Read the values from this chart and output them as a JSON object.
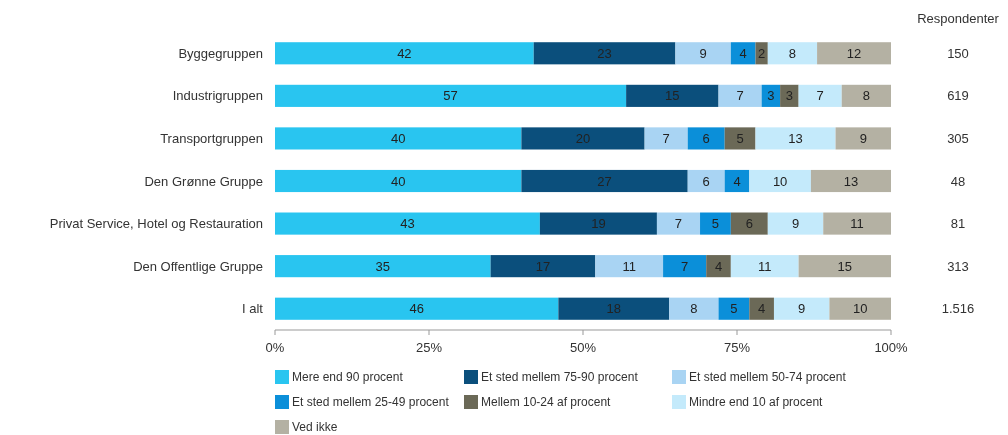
{
  "chart_data": {
    "type": "bar",
    "orientation": "horizontal",
    "stacked": true,
    "data_labels": true,
    "legend": "bottom",
    "categories": [
      "Byggegruppen",
      "Industrigruppen",
      "Transportgruppen",
      "Den Grønne Gruppe",
      "Privat Service, Hotel og Restauration",
      "Den Offentlige Gruppe",
      "I alt"
    ],
    "xlim": [
      0,
      100
    ],
    "xticks": [
      {
        "value": 0,
        "label": "0%"
      },
      {
        "value": 25,
        "label": "25%"
      },
      {
        "value": 50,
        "label": "50%"
      },
      {
        "value": 75,
        "label": "75%"
      },
      {
        "value": 100,
        "label": "100%"
      }
    ],
    "series": [
      {
        "name": "Mere end 90 procent",
        "color": "#29c5f0",
        "values": [
          42,
          57,
          40,
          40,
          43,
          35,
          46
        ]
      },
      {
        "name": "Et sted mellem 75-90 procent",
        "color": "#0b4f7c",
        "values": [
          23,
          15,
          20,
          27,
          19,
          17,
          18
        ]
      },
      {
        "name": "Et sted mellem 50-74 procent",
        "color": "#a9d4f3",
        "values": [
          9,
          7,
          7,
          6,
          7,
          11,
          8
        ]
      },
      {
        "name": "Et sted mellem 25-49 procent",
        "color": "#0b8fd9",
        "values": [
          4,
          3,
          6,
          4,
          5,
          7,
          5
        ]
      },
      {
        "name": "Mellem 10-24 af procent",
        "color": "#6b6957",
        "values": [
          2,
          3,
          5,
          null,
          6,
          4,
          4
        ]
      },
      {
        "name": "Mindre end 10 af procent",
        "color": "#c4eafb",
        "values": [
          8,
          7,
          13,
          10,
          9,
          11,
          9
        ]
      },
      {
        "name": "Ved ikke",
        "color": "#b4b1a3",
        "values": [
          12,
          8,
          9,
          13,
          11,
          15,
          10
        ]
      }
    ],
    "annotations": [
      "Respondenter",
      "150",
      "619",
      "305",
      "48",
      "81",
      "313",
      "1.516"
    ]
  }
}
